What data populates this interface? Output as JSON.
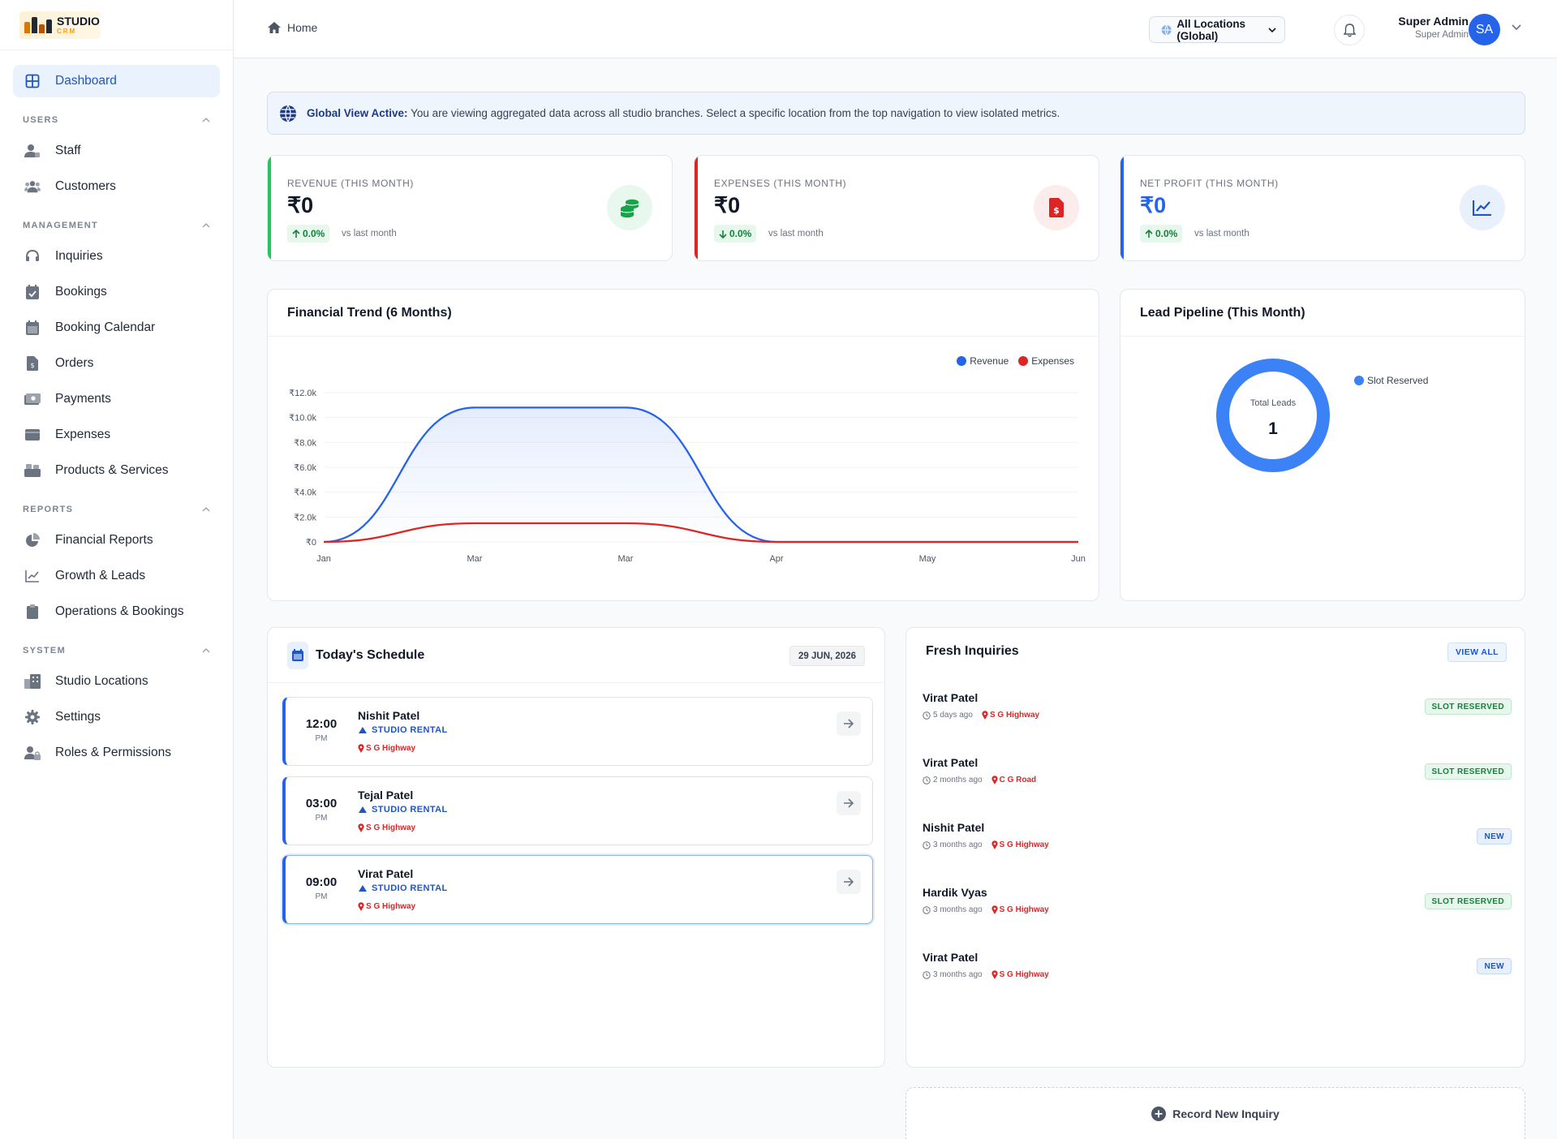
{
  "brand": {
    "name": "STUDIO",
    "sub": "CRM"
  },
  "sidebar": {
    "dashboard": "Dashboard",
    "sections": [
      {
        "title": "USERS",
        "items": [
          "Staff",
          "Customers"
        ]
      },
      {
        "title": "MANAGEMENT",
        "items": [
          "Inquiries",
          "Bookings",
          "Booking Calendar",
          "Orders",
          "Payments",
          "Expenses",
          "Products & Services"
        ]
      },
      {
        "title": "REPORTS",
        "items": [
          "Financial Reports",
          "Growth & Leads",
          "Operations & Bookings"
        ]
      },
      {
        "title": "SYSTEM",
        "items": [
          "Studio Locations",
          "Settings",
          "Roles & Permissions"
        ]
      }
    ]
  },
  "header": {
    "breadcrumb": "Home",
    "location": "All Locations (Global)",
    "user_name": "Super Admin",
    "user_role": "Super Admin",
    "avatar": "SA"
  },
  "banner": {
    "title": "Global View Active:",
    "text": "You are viewing aggregated data across all studio branches. Select a specific location from the top navigation to view isolated metrics."
  },
  "stats": [
    {
      "label": "REVENUE (THIS MONTH)",
      "value": "₹0",
      "change": "0.0%",
      "direction": "up",
      "vs": "vs last month",
      "color": "#22c55e",
      "icon": "coins-icon"
    },
    {
      "label": "EXPENSES (THIS MONTH)",
      "value": "₹0",
      "change": "0.0%",
      "direction": "down",
      "vs": "vs last month",
      "color": "#dc2626",
      "icon": "invoice-icon"
    },
    {
      "label": "NET PROFIT (THIS MONTH)",
      "value": "₹0",
      "change": "0.0%",
      "direction": "up",
      "vs": "vs last month",
      "color": "#2563eb",
      "icon": "trend-chart-icon"
    }
  ],
  "trend": {
    "title": "Financial Trend (6 Months)",
    "legend": [
      "Revenue",
      "Expenses"
    ]
  },
  "pipeline": {
    "title": "Lead Pipeline (This Month)",
    "center_label": "Total Leads",
    "center_value": "1",
    "legend": "Slot Reserved"
  },
  "chart_data": [
    {
      "type": "area",
      "title": "Financial Trend (6 Months)",
      "x": [
        "Jan",
        "Mar",
        "Mar",
        "Apr",
        "May",
        "Jun"
      ],
      "yticks": [
        "₹0",
        "₹2.0k",
        "₹4.0k",
        "₹6.0k",
        "₹8.0k",
        "₹10.0k",
        "₹12.0k"
      ],
      "ylim": [
        0,
        12000
      ],
      "series": [
        {
          "name": "Revenue",
          "color": "#2563eb",
          "values": [
            0,
            10800,
            10800,
            0,
            0,
            0
          ]
        },
        {
          "name": "Expenses",
          "color": "#dc2626",
          "values": [
            0,
            1500,
            1500,
            0,
            0,
            0
          ]
        }
      ],
      "legend_position": "top-right",
      "grid": true
    },
    {
      "type": "pie",
      "title": "Lead Pipeline (This Month)",
      "categories": [
        "Slot Reserved"
      ],
      "values": [
        1
      ],
      "colors": [
        "#3b82f6"
      ],
      "legend_position": "right"
    }
  ],
  "schedule": {
    "title": "Today's Schedule",
    "date": "29 JUN, 2026",
    "items": [
      {
        "time": "12:00",
        "ampm": "PM",
        "name": "Nishit Patel",
        "service": "STUDIO RENTAL",
        "location": "S G Highway"
      },
      {
        "time": "03:00",
        "ampm": "PM",
        "name": "Tejal Patel",
        "service": "STUDIO RENTAL",
        "location": "S G Highway"
      },
      {
        "time": "09:00",
        "ampm": "PM",
        "name": "Virat Patel",
        "service": "STUDIO RENTAL",
        "location": "S G Highway"
      }
    ]
  },
  "inquiries": {
    "title": "Fresh Inquiries",
    "view_all": "VIEW ALL",
    "items": [
      {
        "name": "Virat Patel",
        "ago": "5 days ago",
        "location": "S G Highway",
        "status": "SLOT RESERVED"
      },
      {
        "name": "Virat Patel",
        "ago": "2 months ago",
        "location": "C G Road",
        "status": "SLOT RESERVED"
      },
      {
        "name": "Nishit Patel",
        "ago": "3 months ago",
        "location": "S G Highway",
        "status": "NEW"
      },
      {
        "name": "Hardik Vyas",
        "ago": "3 months ago",
        "location": "S G Highway",
        "status": "SLOT RESERVED"
      },
      {
        "name": "Virat Patel",
        "ago": "3 months ago",
        "location": "S G Highway",
        "status": "NEW"
      }
    ]
  },
  "record_inquiry": "Record New Inquiry"
}
